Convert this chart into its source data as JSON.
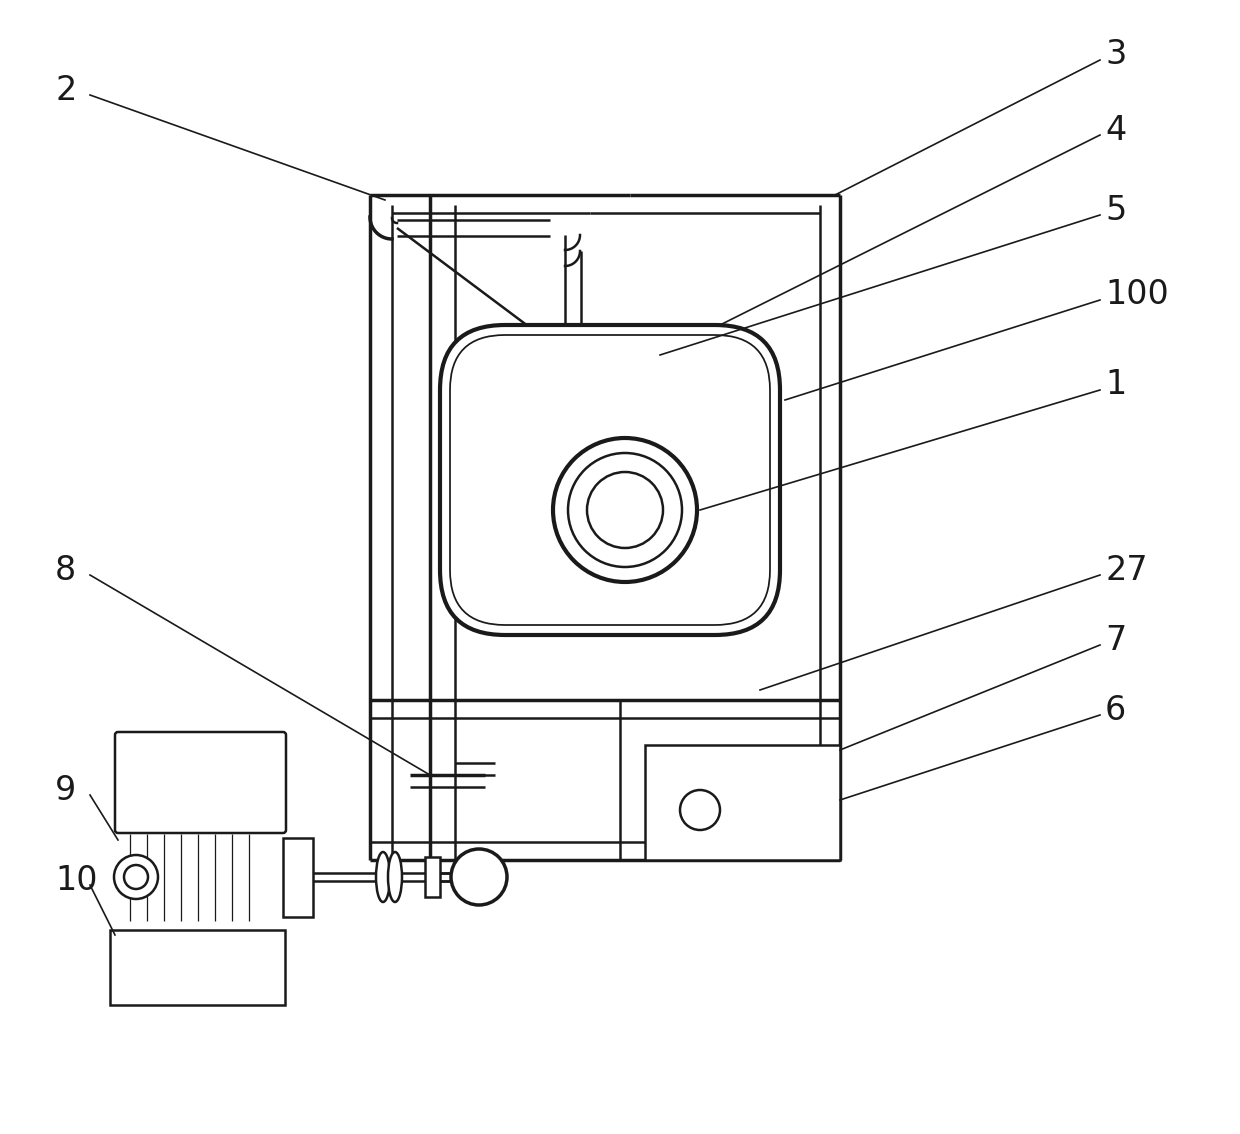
{
  "bg_color": "#ffffff",
  "line_color": "#1a1a1a",
  "lw": 1.8,
  "lw2": 2.5,
  "label_fontsize": 24,
  "figsize": [
    12.4,
    11.34
  ],
  "dpi": 100
}
